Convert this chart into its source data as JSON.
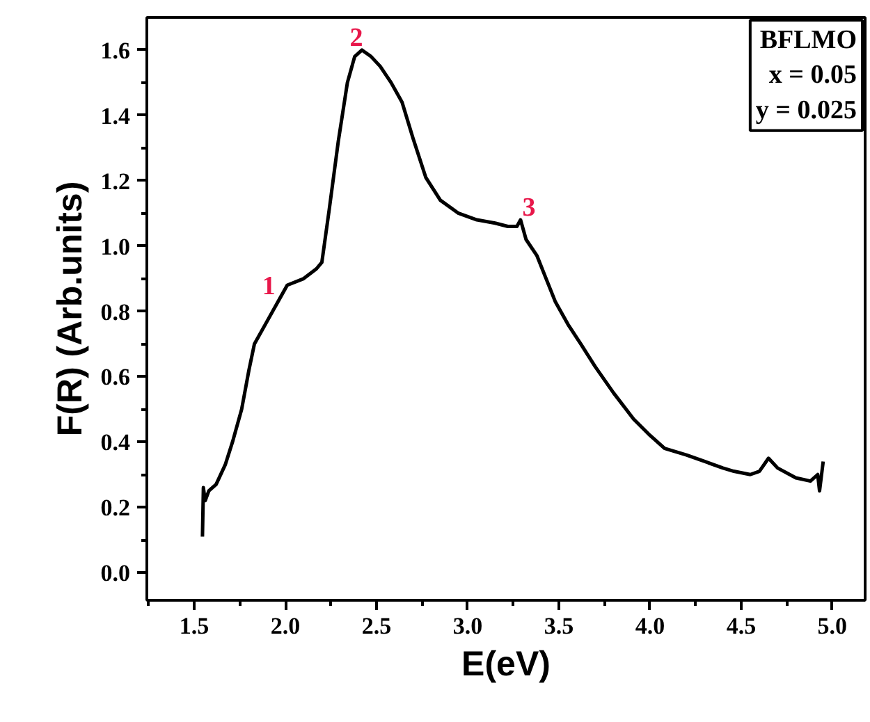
{
  "chart_data": {
    "type": "line",
    "xlabel": "E(eV)",
    "ylabel": "F(R) (Arb.units)",
    "x": [
      1.545,
      1.55,
      1.56,
      1.58,
      1.62,
      1.67,
      1.71,
      1.76,
      1.8,
      1.83,
      1.9,
      1.97,
      2.01,
      2.1,
      2.17,
      2.2,
      2.24,
      2.29,
      2.34,
      2.38,
      2.42,
      2.47,
      2.52,
      2.58,
      2.64,
      2.7,
      2.77,
      2.85,
      2.95,
      3.05,
      3.15,
      3.22,
      3.27,
      3.29,
      3.32,
      3.38,
      3.43,
      3.48,
      3.55,
      3.62,
      3.7,
      3.8,
      3.91,
      4.0,
      4.08,
      4.2,
      4.3,
      4.4,
      4.46,
      4.55,
      4.6,
      4.65,
      4.7,
      4.8,
      4.88,
      4.92,
      4.93,
      4.95
    ],
    "series": [
      {
        "color": "#000000",
        "values": [
          0.11,
          0.26,
          0.22,
          0.25,
          0.27,
          0.33,
          0.4,
          0.5,
          0.62,
          0.7,
          0.77,
          0.84,
          0.88,
          0.9,
          0.93,
          0.95,
          1.11,
          1.32,
          1.5,
          1.58,
          1.6,
          1.58,
          1.55,
          1.5,
          1.44,
          1.33,
          1.21,
          1.14,
          1.1,
          1.08,
          1.07,
          1.06,
          1.06,
          1.08,
          1.02,
          0.97,
          0.9,
          0.83,
          0.76,
          0.7,
          0.63,
          0.55,
          0.47,
          0.42,
          0.38,
          0.36,
          0.34,
          0.32,
          0.31,
          0.3,
          0.31,
          0.35,
          0.32,
          0.29,
          0.28,
          0.3,
          0.25,
          0.34
        ]
      }
    ],
    "xlim": [
      1.24,
      5.18
    ],
    "ylim": [
      -0.085,
      1.7
    ],
    "xticks": [
      {
        "value": 1.5,
        "label": "1.5"
      },
      {
        "value": 2.0,
        "label": "2.0"
      },
      {
        "value": 2.5,
        "label": "2.5"
      },
      {
        "value": 3.0,
        "label": "3.0"
      },
      {
        "value": 3.5,
        "label": "3.5"
      },
      {
        "value": 4.0,
        "label": "4.0"
      },
      {
        "value": 4.5,
        "label": "4.5"
      },
      {
        "value": 5.0,
        "label": "5.0"
      }
    ],
    "yticks": [
      {
        "value": 0.0,
        "label": "0.0"
      },
      {
        "value": 0.2,
        "label": "0.2"
      },
      {
        "value": 0.4,
        "label": "0.4"
      },
      {
        "value": 0.6,
        "label": "0.6"
      },
      {
        "value": 0.8,
        "label": "0.8"
      },
      {
        "value": 1.0,
        "label": "1.0"
      },
      {
        "value": 1.2,
        "label": "1.2"
      },
      {
        "value": 1.4,
        "label": "1.4"
      },
      {
        "value": 1.6,
        "label": "1.6"
      }
    ],
    "annotations": [
      {
        "text": "1",
        "x": 1.97,
        "y": 0.84
      },
      {
        "text": "2",
        "x": 2.42,
        "y": 1.6
      },
      {
        "text": "3",
        "x": 3.29,
        "y": 1.08
      },
      "BFLMO",
      "x = 0.05",
      "y = 0.025"
    ],
    "grid": false,
    "marker": "none",
    "line_style": "solid"
  }
}
